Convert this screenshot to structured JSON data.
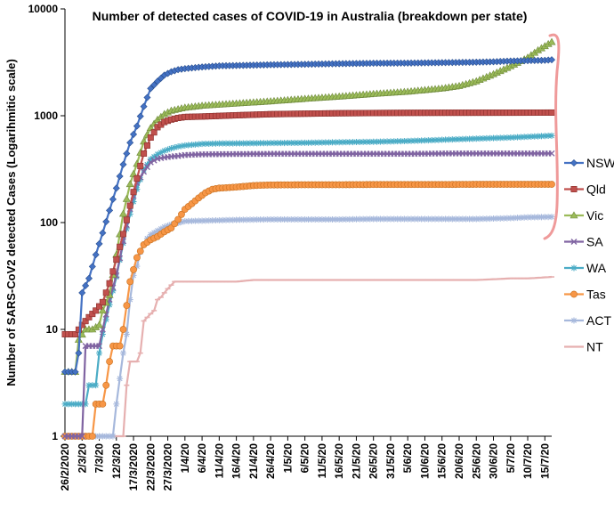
{
  "chart_data": {
    "type": "line",
    "title": "Number of detected cases of COVID-19 in Australia (breakdown per state)",
    "ylabel": "Number of SARS-CoV2 detected Cases (Logarihmitic scale)",
    "xlabel": "",
    "yscale": "log",
    "ylim": [
      1,
      10000
    ],
    "yticks": [
      "1",
      "10",
      "100",
      "1000",
      "10000"
    ],
    "xticks": [
      "26/2/2020",
      "2/3/20",
      "7/3/20",
      "12/3/20",
      "17/3/2020",
      "22/3/2020",
      "27/3/2020",
      "1/4/20",
      "6/4/20",
      "11/4/20",
      "16/4/20",
      "21/4/20",
      "26/4/20",
      "1/5/20",
      "6/5/20",
      "11/5/20",
      "16/5/20",
      "21/5/20",
      "26/5/20",
      "31/5/20",
      "5/6/20",
      "10/6/20",
      "15/6/20",
      "20/6/20",
      "25/6/20",
      "30/6/20",
      "5/7/20",
      "10/7/20",
      "15/7/20"
    ],
    "x_day_range": [
      0,
      142
    ],
    "legend_position": "right",
    "grid": false,
    "series": [
      {
        "name": "NSW",
        "color": "#4472C4",
        "marker": "diamond",
        "points": [
          [
            0,
            4
          ],
          [
            3,
            4
          ],
          [
            4,
            6
          ],
          [
            5,
            22
          ],
          [
            7,
            30
          ],
          [
            9,
            50
          ],
          [
            11,
            80
          ],
          [
            13,
            130
          ],
          [
            15,
            210
          ],
          [
            17,
            350
          ],
          [
            19,
            560
          ],
          [
            21,
            800
          ],
          [
            23,
            1220
          ],
          [
            25,
            1800
          ],
          [
            27,
            2100
          ],
          [
            29,
            2400
          ],
          [
            31,
            2580
          ],
          [
            33,
            2700
          ],
          [
            35,
            2760
          ],
          [
            40,
            2860
          ],
          [
            45,
            2930
          ],
          [
            50,
            2950
          ],
          [
            60,
            3000
          ],
          [
            70,
            3030
          ],
          [
            80,
            3070
          ],
          [
            90,
            3100
          ],
          [
            100,
            3110
          ],
          [
            110,
            3140
          ],
          [
            120,
            3170
          ],
          [
            125,
            3200
          ],
          [
            130,
            3250
          ],
          [
            135,
            3280
          ],
          [
            140,
            3300
          ],
          [
            142,
            3340
          ]
        ]
      },
      {
        "name": "Qld",
        "color": "#C0504D",
        "marker": "square",
        "points": [
          [
            0,
            9
          ],
          [
            3,
            9
          ],
          [
            5,
            11
          ],
          [
            7,
            13
          ],
          [
            9,
            15
          ],
          [
            11,
            18
          ],
          [
            13,
            27
          ],
          [
            15,
            45
          ],
          [
            17,
            78
          ],
          [
            19,
            144
          ],
          [
            21,
            259
          ],
          [
            23,
            443
          ],
          [
            25,
            625
          ],
          [
            27,
            781
          ],
          [
            29,
            873
          ],
          [
            31,
            921
          ],
          [
            33,
            953
          ],
          [
            35,
            974
          ],
          [
            40,
            983
          ],
          [
            50,
            1010
          ],
          [
            60,
            1034
          ],
          [
            70,
            1045
          ],
          [
            80,
            1055
          ],
          [
            90,
            1060
          ],
          [
            100,
            1064
          ],
          [
            110,
            1066
          ],
          [
            120,
            1067
          ],
          [
            130,
            1068
          ],
          [
            142,
            1070
          ]
        ]
      },
      {
        "name": "Vic",
        "color": "#9BBB59",
        "marker": "triangle",
        "points": [
          [
            0,
            4
          ],
          [
            3,
            4
          ],
          [
            4,
            8
          ],
          [
            6,
            10
          ],
          [
            8,
            10
          ],
          [
            10,
            11
          ],
          [
            11,
            15
          ],
          [
            13,
            21
          ],
          [
            15,
            50
          ],
          [
            17,
            121
          ],
          [
            19,
            229
          ],
          [
            21,
            355
          ],
          [
            23,
            574
          ],
          [
            25,
            769
          ],
          [
            27,
            917
          ],
          [
            29,
            1036
          ],
          [
            31,
            1115
          ],
          [
            35,
            1191
          ],
          [
            40,
            1241
          ],
          [
            50,
            1302
          ],
          [
            60,
            1365
          ],
          [
            70,
            1440
          ],
          [
            80,
            1512
          ],
          [
            90,
            1600
          ],
          [
            100,
            1680
          ],
          [
            110,
            1800
          ],
          [
            115,
            1900
          ],
          [
            120,
            2100
          ],
          [
            125,
            2450
          ],
          [
            130,
            2900
          ],
          [
            135,
            3500
          ],
          [
            138,
            4100
          ],
          [
            142,
            4900
          ]
        ]
      },
      {
        "name": "SA",
        "color": "#8064A2",
        "marker": "x",
        "points": [
          [
            0,
            1
          ],
          [
            5,
            1
          ],
          [
            6,
            7
          ],
          [
            9,
            7
          ],
          [
            10,
            7
          ],
          [
            11,
            10
          ],
          [
            13,
            19
          ],
          [
            15,
            32
          ],
          [
            17,
            67
          ],
          [
            19,
            134
          ],
          [
            21,
            235
          ],
          [
            23,
            299
          ],
          [
            25,
            367
          ],
          [
            27,
            396
          ],
          [
            29,
            407
          ],
          [
            31,
            415
          ],
          [
            33,
            420
          ],
          [
            35,
            429
          ],
          [
            40,
            435
          ],
          [
            50,
            438
          ],
          [
            60,
            440
          ],
          [
            70,
            440
          ],
          [
            80,
            440
          ],
          [
            90,
            440
          ],
          [
            100,
            440
          ],
          [
            110,
            443
          ],
          [
            120,
            443
          ],
          [
            130,
            443
          ],
          [
            142,
            444
          ]
        ]
      },
      {
        "name": "WA",
        "color": "#4BACC6",
        "marker": "star",
        "points": [
          [
            0,
            2
          ],
          [
            6,
            2
          ],
          [
            7,
            3
          ],
          [
            9,
            3
          ],
          [
            10,
            6
          ],
          [
            11,
            9
          ],
          [
            13,
            17
          ],
          [
            15,
            31
          ],
          [
            17,
            64
          ],
          [
            19,
            120
          ],
          [
            21,
            205
          ],
          [
            23,
            311
          ],
          [
            25,
            392
          ],
          [
            27,
            436
          ],
          [
            29,
            470
          ],
          [
            31,
            495
          ],
          [
            33,
            514
          ],
          [
            35,
            527
          ],
          [
            40,
            545
          ],
          [
            45,
            550
          ],
          [
            50,
            551
          ],
          [
            60,
            555
          ],
          [
            70,
            558
          ],
          [
            80,
            565
          ],
          [
            90,
            570
          ],
          [
            100,
            580
          ],
          [
            110,
            595
          ],
          [
            120,
            610
          ],
          [
            130,
            625
          ],
          [
            142,
            651
          ]
        ]
      },
      {
        "name": "Tas",
        "color": "#F79646",
        "marker": "circle",
        "points": [
          [
            0,
            1
          ],
          [
            8,
            1
          ],
          [
            9,
            2
          ],
          [
            11,
            2
          ],
          [
            12,
            3
          ],
          [
            13,
            5
          ],
          [
            14,
            7
          ],
          [
            16,
            7
          ],
          [
            17,
            10
          ],
          [
            19,
            28
          ],
          [
            21,
            47
          ],
          [
            23,
            62
          ],
          [
            25,
            69
          ],
          [
            27,
            74
          ],
          [
            29,
            82
          ],
          [
            31,
            89
          ],
          [
            33,
            107
          ],
          [
            35,
            133
          ],
          [
            37,
            150
          ],
          [
            39,
            170
          ],
          [
            41,
            190
          ],
          [
            43,
            205
          ],
          [
            45,
            210
          ],
          [
            50,
            215
          ],
          [
            55,
            222
          ],
          [
            60,
            225
          ],
          [
            70,
            226
          ],
          [
            80,
            226
          ],
          [
            90,
            227
          ],
          [
            100,
            227
          ],
          [
            110,
            227
          ],
          [
            120,
            228
          ],
          [
            130,
            228
          ],
          [
            142,
            228
          ]
        ]
      },
      {
        "name": "ACT",
        "color": "#A6B8DC",
        "marker": "star",
        "points": [
          [
            0,
            1
          ],
          [
            14,
            1
          ],
          [
            15,
            2
          ],
          [
            17,
            6
          ],
          [
            18,
            9
          ],
          [
            19,
            19
          ],
          [
            20,
            32
          ],
          [
            21,
            39
          ],
          [
            22,
            53
          ],
          [
            23,
            62
          ],
          [
            24,
            71
          ],
          [
            25,
            77
          ],
          [
            27,
            84
          ],
          [
            29,
            91
          ],
          [
            31,
            96
          ],
          [
            33,
            99
          ],
          [
            35,
            103
          ],
          [
            40,
            104
          ],
          [
            50,
            106
          ],
          [
            60,
            107
          ],
          [
            70,
            107
          ],
          [
            80,
            107
          ],
          [
            90,
            108
          ],
          [
            100,
            108
          ],
          [
            110,
            108
          ],
          [
            120,
            108
          ],
          [
            130,
            110
          ],
          [
            135,
            112
          ],
          [
            142,
            113
          ]
        ]
      },
      {
        "name": "NT",
        "color": "#E6B0B0",
        "marker": "dash",
        "points": [
          [
            0,
            1
          ],
          [
            17,
            1
          ],
          [
            18,
            3
          ],
          [
            19,
            5
          ],
          [
            21,
            5
          ],
          [
            22,
            6
          ],
          [
            23,
            12
          ],
          [
            25,
            14
          ],
          [
            26,
            15
          ],
          [
            27,
            19
          ],
          [
            28,
            20
          ],
          [
            29,
            22
          ],
          [
            30,
            24
          ],
          [
            31,
            26
          ],
          [
            32,
            28
          ],
          [
            40,
            28
          ],
          [
            50,
            28
          ],
          [
            55,
            29
          ],
          [
            60,
            29
          ],
          [
            70,
            29
          ],
          [
            80,
            29
          ],
          [
            90,
            29
          ],
          [
            100,
            29
          ],
          [
            110,
            29
          ],
          [
            120,
            29
          ],
          [
            130,
            30
          ],
          [
            135,
            30
          ],
          [
            142,
            31
          ]
        ]
      }
    ]
  }
}
